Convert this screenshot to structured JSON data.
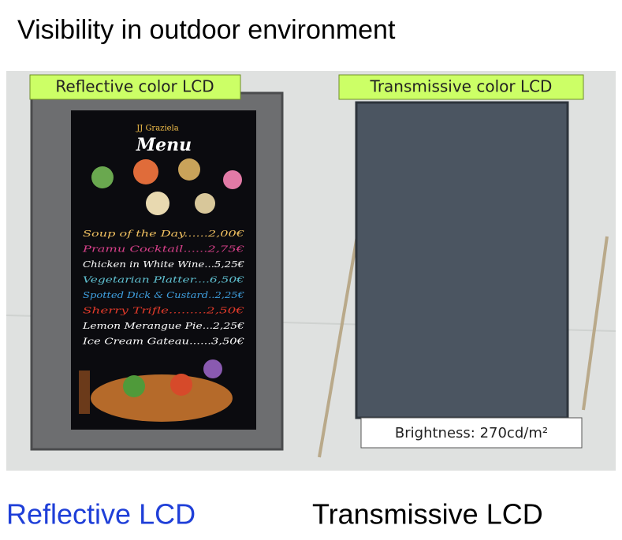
{
  "title": "Visibility in outdoor environment",
  "photo": {
    "left_label": "Reflective color LCD",
    "right_label": "Transmissive color LCD",
    "brightness": "Brightness: 270cd/m²",
    "menu": {
      "header": "Menu",
      "banner": "JJ Graziela",
      "items": [
        "Soup of the Day......2,00€",
        "Pramu Cocktail......2,75€",
        "Chicken in White Wine...5,25€",
        "Vegetarian Platter....6,50€",
        "Spotted Dick & Custard..2,25€",
        "Sherry Trifle.........2,50€",
        "Lemon Merangue Pie...2,25€",
        "Ice Cream Gateau......3,50€"
      ]
    }
  },
  "captions": {
    "left": "Reflective LCD",
    "right": "Transmissive LCD"
  }
}
